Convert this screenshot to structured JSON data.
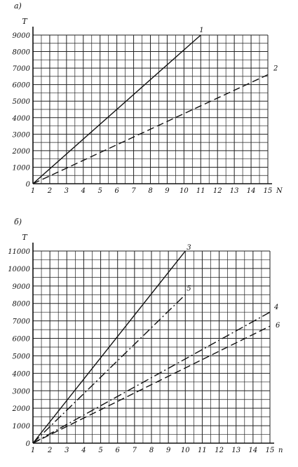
{
  "chart_data": [
    {
      "type": "line",
      "panel_label": "а)",
      "ylabel": "T",
      "xlabel": "N",
      "x_ticks": [
        "1",
        "2",
        "3",
        "4",
        "5",
        "6",
        "7",
        "8",
        "9",
        "10",
        "11",
        "12",
        "13",
        "14",
        "15"
      ],
      "y_ticks": [
        "0",
        "1000",
        "2000",
        "3000",
        "4000",
        "5000",
        "6000",
        "7000",
        "8000",
        "9000"
      ],
      "xlim": [
        1,
        15
      ],
      "ylim": [
        0,
        9000
      ],
      "grid": true,
      "series": [
        {
          "name": "1",
          "style": "solid",
          "color": "#111111",
          "x": [
            1,
            11
          ],
          "y": [
            0,
            9000
          ]
        },
        {
          "name": "2",
          "style": "dashed",
          "color": "#111111",
          "x": [
            1,
            15
          ],
          "y": [
            0,
            6600
          ]
        }
      ]
    },
    {
      "type": "line",
      "panel_label": "б)",
      "ylabel": "T",
      "xlabel": "n",
      "x_ticks": [
        "1",
        "2",
        "3",
        "4",
        "5",
        "6",
        "7",
        "8",
        "9",
        "10",
        "11",
        "12",
        "13",
        "14",
        "15"
      ],
      "y_ticks": [
        "0",
        "1000",
        "2000",
        "3000",
        "4000",
        "5000",
        "6000",
        "7000",
        "8000",
        "9000",
        "10000",
        "11000"
      ],
      "xlim": [
        1,
        15
      ],
      "ylim": [
        0,
        11000
      ],
      "grid": true,
      "series": [
        {
          "name": "3",
          "style": "solid",
          "color": "#111111",
          "x": [
            1,
            10
          ],
          "y": [
            0,
            11000
          ]
        },
        {
          "name": "5",
          "style": "dashdot",
          "color": "#111111",
          "x": [
            1,
            10
          ],
          "y": [
            0,
            8500
          ]
        },
        {
          "name": "4",
          "style": "dashdot",
          "color": "#111111",
          "x": [
            1,
            15
          ],
          "y": [
            0,
            7500
          ]
        },
        {
          "name": "6",
          "style": "dashed",
          "color": "#111111",
          "x": [
            1,
            15
          ],
          "y": [
            0,
            6700
          ]
        }
      ]
    }
  ]
}
